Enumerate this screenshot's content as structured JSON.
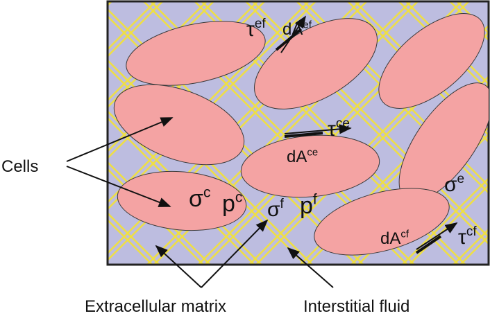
{
  "labels": {
    "cells": "Cells",
    "extracellular_matrix": "Extracellular matrix",
    "interstitial_fluid": "Interstitial fluid"
  },
  "symbols": [
    {
      "base": "τ",
      "sup": "ef"
    },
    {
      "base": "dA",
      "sup": "ef"
    },
    {
      "base": "τ",
      "sup": "ce"
    },
    {
      "base": "dA",
      "sup": "ce"
    },
    {
      "base": "σ",
      "sup": "c"
    },
    {
      "base": "p",
      "sup": "c"
    },
    {
      "base": "σ",
      "sup": "f"
    },
    {
      "base": "p",
      "sup": "f"
    },
    {
      "base": "σ",
      "sup": "e"
    },
    {
      "base": "dA",
      "sup": "cf"
    },
    {
      "base": "τ",
      "sup": "cf"
    }
  ]
}
